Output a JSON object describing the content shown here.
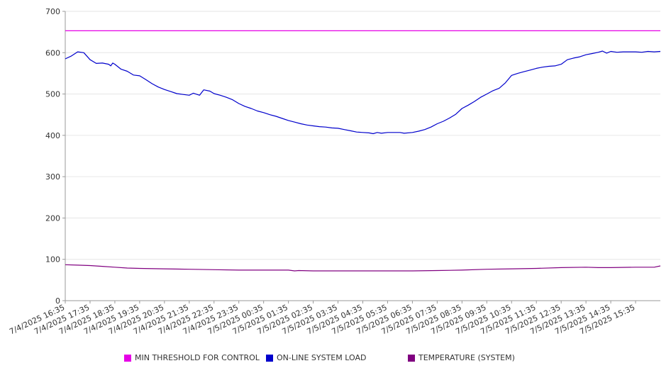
{
  "chart_data": {
    "type": "line",
    "ylim": [
      0,
      700
    ],
    "yticks": [
      0,
      100,
      200,
      300,
      400,
      500,
      600,
      700
    ],
    "xticks": [
      "7/4/2025 16:35",
      "7/4/2025 17:35",
      "7/4/2025 18:35",
      "7/4/2025 19:35",
      "7/4/2025 20:35",
      "7/4/2025 21:35",
      "7/4/2025 22:35",
      "7/4/2025 23:35",
      "7/5/2025 00:35",
      "7/5/2025 01:35",
      "7/5/2025 02:35",
      "7/5/2025 03:35",
      "7/5/2025 04:35",
      "7/5/2025 05:35",
      "7/5/2025 06:35",
      "7/5/2025 07:35",
      "7/5/2025 08:35",
      "7/5/2025 09:35",
      "7/5/2025 10:35",
      "7/5/2025 11:35",
      "7/5/2025 12:35",
      "7/5/2025 13:35",
      "7/5/2025 14:35",
      "7/5/2025 15:35"
    ],
    "grid": true,
    "legend_position": "bottom",
    "series": [
      {
        "name": "MIN THRESHOLD FOR CONTROL",
        "color": "#e600e6",
        "points": [
          [
            "7/4/2025 16:35",
            653
          ],
          [
            "7/5/2025 16:35",
            653
          ]
        ]
      },
      {
        "name": "ON-LINE SYSTEM LOAD",
        "color": "#0000cc",
        "points": [
          [
            "7/4/2025 16:35",
            585
          ],
          [
            "7/4/2025 16:50",
            592
          ],
          [
            "7/4/2025 17:05",
            602
          ],
          [
            "7/4/2025 17:20",
            600
          ],
          [
            "7/4/2025 17:35",
            583
          ],
          [
            "7/4/2025 17:50",
            574
          ],
          [
            "7/4/2025 18:05",
            575
          ],
          [
            "7/4/2025 18:20",
            572
          ],
          [
            "7/4/2025 18:25",
            568
          ],
          [
            "7/4/2025 18:30",
            575
          ],
          [
            "7/4/2025 18:35",
            572
          ],
          [
            "7/4/2025 18:50",
            560
          ],
          [
            "7/4/2025 19:05",
            555
          ],
          [
            "7/4/2025 19:20",
            546
          ],
          [
            "7/4/2025 19:35",
            544
          ],
          [
            "7/4/2025 19:50",
            535
          ],
          [
            "7/4/2025 20:05",
            525
          ],
          [
            "7/4/2025 20:20",
            517
          ],
          [
            "7/4/2025 20:35",
            511
          ],
          [
            "7/4/2025 20:50",
            506
          ],
          [
            "7/4/2025 21:05",
            501
          ],
          [
            "7/4/2025 21:20",
            499
          ],
          [
            "7/4/2025 21:35",
            497
          ],
          [
            "7/4/2025 21:45",
            502
          ],
          [
            "7/4/2025 22:00",
            497
          ],
          [
            "7/4/2025 22:10",
            510
          ],
          [
            "7/4/2025 22:25",
            507
          ],
          [
            "7/4/2025 22:35",
            501
          ],
          [
            "7/4/2025 22:50",
            497
          ],
          [
            "7/4/2025 23:05",
            492
          ],
          [
            "7/4/2025 23:20",
            486
          ],
          [
            "7/4/2025 23:35",
            477
          ],
          [
            "7/4/2025 23:50",
            470
          ],
          [
            "7/5/2025 00:05",
            465
          ],
          [
            "7/5/2025 00:20",
            459
          ],
          [
            "7/5/2025 00:35",
            455
          ],
          [
            "7/5/2025 00:50",
            450
          ],
          [
            "7/5/2025 01:05",
            446
          ],
          [
            "7/5/2025 01:20",
            441
          ],
          [
            "7/5/2025 01:35",
            436
          ],
          [
            "7/5/2025 01:50",
            432
          ],
          [
            "7/5/2025 02:05",
            428
          ],
          [
            "7/5/2025 02:20",
            425
          ],
          [
            "7/5/2025 02:35",
            423
          ],
          [
            "7/5/2025 02:50",
            421
          ],
          [
            "7/5/2025 03:05",
            420
          ],
          [
            "7/5/2025 03:20",
            418
          ],
          [
            "7/5/2025 03:35",
            417
          ],
          [
            "7/5/2025 03:50",
            414
          ],
          [
            "7/5/2025 04:05",
            411
          ],
          [
            "7/5/2025 04:20",
            408
          ],
          [
            "7/5/2025 04:35",
            407
          ],
          [
            "7/5/2025 04:50",
            406
          ],
          [
            "7/5/2025 05:00",
            404
          ],
          [
            "7/5/2025 05:10",
            407
          ],
          [
            "7/5/2025 05:20",
            405
          ],
          [
            "7/5/2025 05:35",
            407
          ],
          [
            "7/5/2025 05:50",
            407
          ],
          [
            "7/5/2025 06:05",
            407
          ],
          [
            "7/5/2025 06:15",
            405
          ],
          [
            "7/5/2025 06:35",
            407
          ],
          [
            "7/5/2025 06:50",
            410
          ],
          [
            "7/5/2025 07:05",
            414
          ],
          [
            "7/5/2025 07:20",
            420
          ],
          [
            "7/5/2025 07:35",
            428
          ],
          [
            "7/5/2025 07:50",
            434
          ],
          [
            "7/5/2025 08:05",
            442
          ],
          [
            "7/5/2025 08:20",
            451
          ],
          [
            "7/5/2025 08:35",
            465
          ],
          [
            "7/5/2025 08:50",
            473
          ],
          [
            "7/5/2025 09:05",
            482
          ],
          [
            "7/5/2025 09:20",
            492
          ],
          [
            "7/5/2025 09:35",
            500
          ],
          [
            "7/5/2025 09:50",
            508
          ],
          [
            "7/5/2025 10:05",
            514
          ],
          [
            "7/5/2025 10:20",
            527
          ],
          [
            "7/5/2025 10:35",
            545
          ],
          [
            "7/5/2025 10:50",
            550
          ],
          [
            "7/5/2025 11:05",
            554
          ],
          [
            "7/5/2025 11:20",
            558
          ],
          [
            "7/5/2025 11:35",
            562
          ],
          [
            "7/5/2025 11:50",
            565
          ],
          [
            "7/5/2025 12:05",
            567
          ],
          [
            "7/5/2025 12:20",
            568
          ],
          [
            "7/5/2025 12:35",
            572
          ],
          [
            "7/5/2025 12:50",
            583
          ],
          [
            "7/5/2025 13:05",
            587
          ],
          [
            "7/5/2025 13:20",
            590
          ],
          [
            "7/5/2025 13:35",
            595
          ],
          [
            "7/5/2025 13:50",
            598
          ],
          [
            "7/5/2025 14:05",
            601
          ],
          [
            "7/5/2025 14:15",
            604
          ],
          [
            "7/5/2025 14:25",
            599
          ],
          [
            "7/5/2025 14:35",
            603
          ],
          [
            "7/5/2025 14:50",
            601
          ],
          [
            "7/5/2025 15:05",
            602
          ],
          [
            "7/5/2025 15:20",
            602
          ],
          [
            "7/5/2025 15:35",
            602
          ],
          [
            "7/5/2025 15:50",
            601
          ],
          [
            "7/5/2025 16:05",
            603
          ],
          [
            "7/5/2025 16:20",
            602
          ],
          [
            "7/5/2025 16:35",
            603
          ]
        ]
      },
      {
        "name": "TEMPERATURE (SYSTEM)",
        "color": "#800080",
        "points": [
          [
            "7/4/2025 16:35",
            87
          ],
          [
            "7/4/2025 17:05",
            86
          ],
          [
            "7/4/2025 17:35",
            85
          ],
          [
            "7/4/2025 18:05",
            83
          ],
          [
            "7/4/2025 18:35",
            81
          ],
          [
            "7/4/2025 19:05",
            79
          ],
          [
            "7/4/2025 19:35",
            78
          ],
          [
            "7/4/2025 20:35",
            77
          ],
          [
            "7/4/2025 21:35",
            76
          ],
          [
            "7/4/2025 22:35",
            75
          ],
          [
            "7/4/2025 23:35",
            74
          ],
          [
            "7/5/2025 00:35",
            74
          ],
          [
            "7/5/2025 01:35",
            74
          ],
          [
            "7/5/2025 01:50",
            72
          ],
          [
            "7/5/2025 02:00",
            73
          ],
          [
            "7/5/2025 02:35",
            72
          ],
          [
            "7/5/2025 03:35",
            72
          ],
          [
            "7/5/2025 04:35",
            72
          ],
          [
            "7/5/2025 05:35",
            72
          ],
          [
            "7/5/2025 06:35",
            72
          ],
          [
            "7/5/2025 07:35",
            73
          ],
          [
            "7/5/2025 08:35",
            74
          ],
          [
            "7/5/2025 09:35",
            76
          ],
          [
            "7/5/2025 10:35",
            77
          ],
          [
            "7/5/2025 11:35",
            78
          ],
          [
            "7/5/2025 12:35",
            80
          ],
          [
            "7/5/2025 13:35",
            81
          ],
          [
            "7/5/2025 14:05",
            80
          ],
          [
            "7/5/2025 14:35",
            80
          ],
          [
            "7/5/2025 15:35",
            81
          ],
          [
            "7/5/2025 16:20",
            81
          ],
          [
            "7/5/2025 16:35",
            84
          ]
        ]
      }
    ]
  }
}
